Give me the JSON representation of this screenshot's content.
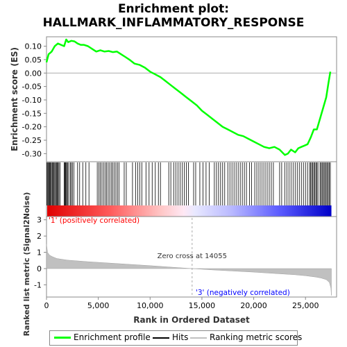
{
  "chart_data": {
    "title_line1": "Enrichment plot:",
    "title_line2": "HALLMARK_INFLAMMATORY_RESPONSE",
    "es_panel": {
      "type": "line",
      "ylabel": "Enrichment score (ES)",
      "ylim": [
        -0.33,
        0.135
      ],
      "yticks": [
        "0.10",
        "0.05",
        "0.00",
        "-0.05",
        "-0.10",
        "-0.15",
        "-0.20",
        "-0.25",
        "-0.30"
      ],
      "ytick_values": [
        0.1,
        0.05,
        0.0,
        -0.05,
        -0.1,
        -0.15,
        -0.2,
        -0.25,
        -0.3
      ],
      "series": [
        {
          "name": "Enrichment profile",
          "color": "#00ff00",
          "x": [
            0,
            200,
            500,
            800,
            1100,
            1400,
            1700,
            1900,
            2100,
            2400,
            2700,
            3000,
            3300,
            3600,
            4000,
            4400,
            4800,
            5200,
            5600,
            6000,
            6400,
            6800,
            7200,
            7600,
            8000,
            8500,
            9000,
            9500,
            10000,
            10500,
            11000,
            11500,
            12000,
            12500,
            13000,
            13500,
            14000,
            14500,
            15000,
            15500,
            16000,
            16500,
            17000,
            17500,
            18000,
            18500,
            19000,
            19500,
            20000,
            20500,
            21000,
            21500,
            22000,
            22500,
            23000,
            23300,
            23600,
            24000,
            24300,
            24600,
            24900,
            25200,
            25500,
            25800,
            26100,
            26400,
            26700,
            27000,
            27200,
            27400
          ],
          "y": [
            0.04,
            0.07,
            0.08,
            0.1,
            0.11,
            0.105,
            0.1,
            0.125,
            0.115,
            0.12,
            0.118,
            0.11,
            0.105,
            0.105,
            0.1,
            0.09,
            0.08,
            0.085,
            0.08,
            0.082,
            0.078,
            0.08,
            0.07,
            0.06,
            0.05,
            0.035,
            0.03,
            0.02,
            0.005,
            -0.005,
            -0.015,
            -0.03,
            -0.045,
            -0.06,
            -0.075,
            -0.09,
            -0.105,
            -0.12,
            -0.14,
            -0.155,
            -0.17,
            -0.185,
            -0.2,
            -0.21,
            -0.22,
            -0.23,
            -0.235,
            -0.245,
            -0.255,
            -0.265,
            -0.275,
            -0.28,
            -0.275,
            -0.285,
            -0.305,
            -0.3,
            -0.285,
            -0.295,
            -0.28,
            -0.275,
            -0.27,
            -0.265,
            -0.24,
            -0.21,
            -0.21,
            -0.17,
            -0.13,
            -0.09,
            -0.04,
            0.005
          ]
        }
      ]
    },
    "hits_panel": {
      "series_name": "Hits",
      "positions": [
        50,
        120,
        200,
        260,
        330,
        400,
        470,
        560,
        640,
        720,
        800,
        880,
        960,
        1040,
        1120,
        1200,
        1300,
        1700,
        1760,
        1820,
        1880,
        1950,
        2050,
        2150,
        2300,
        2400,
        2500,
        2650,
        3000,
        3200,
        3500,
        3800,
        4100,
        4900,
        5050,
        5200,
        5350,
        5500,
        5650,
        5800,
        5950,
        6100,
        6250,
        6400,
        6550,
        6700,
        6850,
        7000,
        7500,
        7700,
        8300,
        8600,
        8800,
        9000,
        9200,
        9600,
        9900,
        10200,
        10500,
        10800,
        11000,
        11800,
        12000,
        12300,
        12500,
        12700,
        12900,
        13100,
        13300,
        13500,
        13700,
        14200,
        14400,
        14800,
        15100,
        15400,
        15700,
        16200,
        16400,
        16600,
        16800,
        17000,
        17200,
        17500,
        17700,
        17900,
        18100,
        18300,
        18500,
        18700,
        18900,
        19100,
        19300,
        19600,
        19800,
        20100,
        20300,
        20500,
        20700,
        20900,
        21100,
        21300,
        21500,
        21700,
        21900,
        22500,
        22700,
        23000,
        23200,
        23400,
        23600,
        23800,
        24000,
        24200,
        24400,
        24600,
        24800,
        25000,
        25200,
        25400,
        25500,
        25600,
        25700,
        25800,
        25900,
        26000,
        26100,
        26200,
        26400,
        26500,
        26600,
        26700,
        26800,
        26900,
        27000,
        27100,
        27200,
        27300,
        27400
      ]
    },
    "rank_panel": {
      "type": "area",
      "series_name": "Ranking metric scores",
      "ylabel": "Ranked list metric (Signal2Noise)",
      "xlabel": "Rank in Ordered Dataset",
      "ylim": [
        -1.75,
        3.2
      ],
      "yticks": [
        "3",
        "2",
        "1",
        "0",
        "-1"
      ],
      "ytick_values": [
        3,
        2,
        1,
        0,
        -1
      ],
      "x": [
        0,
        100,
        300,
        600,
        1000,
        2000,
        4000,
        6000,
        8000,
        10000,
        12000,
        14055,
        16000,
        18000,
        20000,
        22000,
        24000,
        25000,
        26000,
        26500,
        27000,
        27300,
        27450,
        27500
      ],
      "y": [
        1.5,
        1.0,
        0.82,
        0.72,
        0.62,
        0.52,
        0.42,
        0.34,
        0.26,
        0.18,
        0.09,
        0.0,
        -0.08,
        -0.15,
        -0.22,
        -0.3,
        -0.38,
        -0.44,
        -0.52,
        -0.58,
        -0.68,
        -0.85,
        -1.2,
        -1.65
      ],
      "color": "#c0c0c0",
      "zero_cross_label": "Zero cross at 14055",
      "zero_cross": 14055,
      "pos_label": "'1' (positively correlated)",
      "neg_label": "'3' (negatively correlated)",
      "pos_color": "#ff0000",
      "neg_color": "#0000ff"
    },
    "xlim": [
      0,
      28000
    ],
    "xticks": [
      "0",
      "5,000",
      "10,000",
      "15,000",
      "20,000",
      "25,000"
    ],
    "xtick_values": [
      0,
      5000,
      10000,
      15000,
      20000,
      25000
    ],
    "n_genes": 27500
  },
  "legend": {
    "profile": "Enrichment profile",
    "hits": "Hits",
    "ranking": "Ranking metric scores"
  }
}
